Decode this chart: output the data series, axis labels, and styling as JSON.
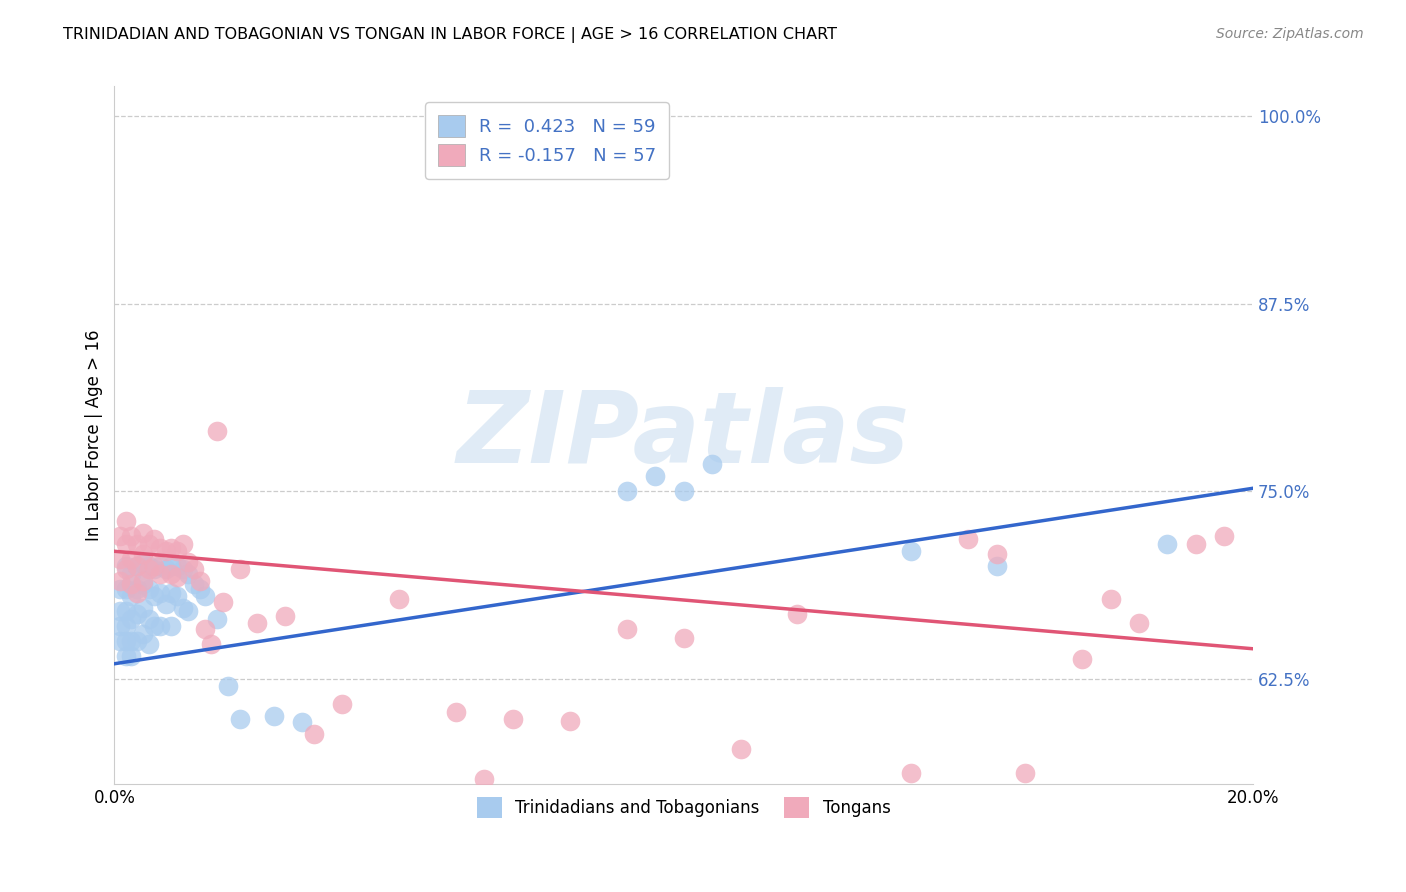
{
  "title": "TRINIDADIAN AND TOBAGONIAN VS TONGAN IN LABOR FORCE | AGE > 16 CORRELATION CHART",
  "source": "Source: ZipAtlas.com",
  "ylabel": "In Labor Force | Age > 16",
  "xlim": [
    0.0,
    0.2
  ],
  "ylim": [
    0.555,
    1.02
  ],
  "xticks": [
    0.0,
    0.05,
    0.1,
    0.15,
    0.2
  ],
  "xticklabels": [
    "0.0%",
    "",
    "",
    "",
    "20.0%"
  ],
  "yticks_right": [
    0.625,
    0.75,
    0.875,
    1.0
  ],
  "ytick_right_labels": [
    "62.5%",
    "75.0%",
    "87.5%",
    "100.0%"
  ],
  "blue_color": "#A8CBEE",
  "pink_color": "#F0AABB",
  "blue_line_color": "#3366CC",
  "pink_line_color": "#E05575",
  "legend_label_blue": "Trinidadians and Tobagonians",
  "legend_label_pink": "Tongans",
  "watermark": "ZIPatlas",
  "blue_line_x0": 0.0,
  "blue_line_y0": 0.635,
  "blue_line_x1": 0.2,
  "blue_line_y1": 0.752,
  "pink_line_x0": 0.0,
  "pink_line_y0": 0.71,
  "pink_line_x1": 0.2,
  "pink_line_y1": 0.645,
  "blue_scatter_x": [
    0.001,
    0.001,
    0.001,
    0.001,
    0.002,
    0.002,
    0.002,
    0.002,
    0.002,
    0.002,
    0.003,
    0.003,
    0.003,
    0.003,
    0.003,
    0.004,
    0.004,
    0.004,
    0.004,
    0.005,
    0.005,
    0.005,
    0.005,
    0.006,
    0.006,
    0.006,
    0.006,
    0.007,
    0.007,
    0.007,
    0.008,
    0.008,
    0.008,
    0.009,
    0.009,
    0.01,
    0.01,
    0.01,
    0.011,
    0.011,
    0.012,
    0.012,
    0.013,
    0.013,
    0.014,
    0.015,
    0.016,
    0.018,
    0.02,
    0.022,
    0.028,
    0.033,
    0.09,
    0.095,
    0.1,
    0.105,
    0.14,
    0.155,
    0.185
  ],
  "blue_scatter_y": [
    0.685,
    0.67,
    0.66,
    0.65,
    0.7,
    0.685,
    0.67,
    0.66,
    0.65,
    0.64,
    0.695,
    0.68,
    0.665,
    0.65,
    0.64,
    0.7,
    0.685,
    0.668,
    0.65,
    0.702,
    0.688,
    0.672,
    0.655,
    0.7,
    0.685,
    0.665,
    0.648,
    0.698,
    0.68,
    0.66,
    0.7,
    0.682,
    0.66,
    0.698,
    0.675,
    0.7,
    0.682,
    0.66,
    0.7,
    0.68,
    0.698,
    0.672,
    0.695,
    0.67,
    0.688,
    0.685,
    0.68,
    0.665,
    0.62,
    0.598,
    0.6,
    0.596,
    0.75,
    0.76,
    0.75,
    0.768,
    0.71,
    0.7,
    0.715
  ],
  "pink_scatter_x": [
    0.001,
    0.001,
    0.001,
    0.002,
    0.002,
    0.002,
    0.003,
    0.003,
    0.003,
    0.004,
    0.004,
    0.004,
    0.005,
    0.005,
    0.005,
    0.006,
    0.006,
    0.007,
    0.007,
    0.008,
    0.008,
    0.009,
    0.01,
    0.01,
    0.011,
    0.011,
    0.012,
    0.013,
    0.014,
    0.015,
    0.016,
    0.017,
    0.018,
    0.019,
    0.022,
    0.025,
    0.03,
    0.035,
    0.04,
    0.05,
    0.06,
    0.065,
    0.07,
    0.08,
    0.09,
    0.1,
    0.11,
    0.12,
    0.14,
    0.15,
    0.155,
    0.16,
    0.17,
    0.175,
    0.18,
    0.19,
    0.195
  ],
  "pink_scatter_y": [
    0.72,
    0.705,
    0.69,
    0.73,
    0.715,
    0.698,
    0.72,
    0.705,
    0.688,
    0.715,
    0.7,
    0.682,
    0.722,
    0.708,
    0.69,
    0.715,
    0.698,
    0.718,
    0.7,
    0.712,
    0.695,
    0.71,
    0.712,
    0.695,
    0.71,
    0.693,
    0.715,
    0.703,
    0.698,
    0.69,
    0.658,
    0.648,
    0.79,
    0.676,
    0.698,
    0.662,
    0.667,
    0.588,
    0.608,
    0.678,
    0.603,
    0.558,
    0.598,
    0.597,
    0.658,
    0.652,
    0.578,
    0.668,
    0.562,
    0.718,
    0.708,
    0.562,
    0.638,
    0.678,
    0.662,
    0.715,
    0.72
  ]
}
